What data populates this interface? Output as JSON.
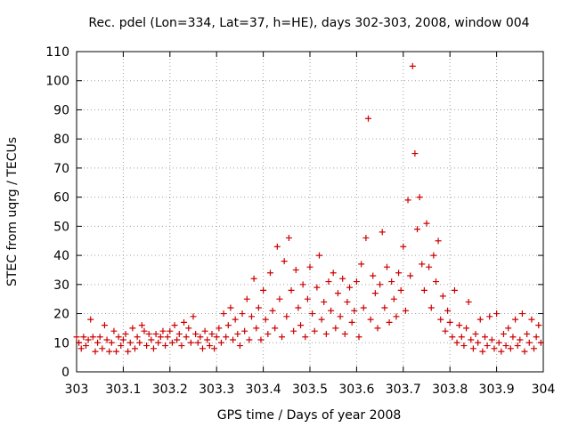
{
  "chart_data": {
    "type": "scatter",
    "title": "Rec. pdel (Lon=334, Lat=37, h=HE), days 302-303, 2008, window 004",
    "xlabel": "GPS time / Days of year 2008",
    "ylabel": "STEC from uqrg / TECUs",
    "xlim": [
      303,
      304
    ],
    "ylim": [
      0,
      110
    ],
    "xticks": [
      "303",
      "303.1",
      "303.2",
      "303.3",
      "303.4",
      "303.5",
      "303.6",
      "303.7",
      "303.8",
      "303.9",
      "304"
    ],
    "yticks": [
      "0",
      "10",
      "20",
      "30",
      "40",
      "50",
      "60",
      "70",
      "80",
      "90",
      "100",
      "110"
    ],
    "grid": true,
    "marker": "plus",
    "color": "#cc0000",
    "series": [
      {
        "name": "STEC",
        "points": [
          [
            303.0,
            12
          ],
          [
            303.005,
            10
          ],
          [
            303.01,
            8
          ],
          [
            303.015,
            12
          ],
          [
            303.02,
            9
          ],
          [
            303.025,
            11
          ],
          [
            303.03,
            18
          ],
          [
            303.035,
            12
          ],
          [
            303.04,
            7
          ],
          [
            303.045,
            10
          ],
          [
            303.05,
            12
          ],
          [
            303.055,
            8
          ],
          [
            303.06,
            16
          ],
          [
            303.065,
            11
          ],
          [
            303.07,
            7
          ],
          [
            303.075,
            10
          ],
          [
            303.08,
            14
          ],
          [
            303.085,
            7
          ],
          [
            303.09,
            12
          ],
          [
            303.095,
            9
          ],
          [
            303.1,
            11
          ],
          [
            303.105,
            13
          ],
          [
            303.11,
            7
          ],
          [
            303.115,
            10
          ],
          [
            303.12,
            15
          ],
          [
            303.125,
            8
          ],
          [
            303.13,
            12
          ],
          [
            303.135,
            10
          ],
          [
            303.14,
            16
          ],
          [
            303.145,
            14
          ],
          [
            303.15,
            9
          ],
          [
            303.155,
            13
          ],
          [
            303.16,
            11
          ],
          [
            303.165,
            8
          ],
          [
            303.17,
            13
          ],
          [
            303.175,
            10
          ],
          [
            303.18,
            12
          ],
          [
            303.185,
            14
          ],
          [
            303.19,
            9
          ],
          [
            303.195,
            12
          ],
          [
            303.2,
            14
          ],
          [
            303.205,
            10
          ],
          [
            303.21,
            16
          ],
          [
            303.215,
            11
          ],
          [
            303.22,
            13
          ],
          [
            303.225,
            9
          ],
          [
            303.23,
            17
          ],
          [
            303.235,
            12
          ],
          [
            303.24,
            15
          ],
          [
            303.245,
            10
          ],
          [
            303.25,
            19
          ],
          [
            303.255,
            13
          ],
          [
            303.26,
            10
          ],
          [
            303.265,
            12
          ],
          [
            303.27,
            8
          ],
          [
            303.275,
            14
          ],
          [
            303.28,
            11
          ],
          [
            303.285,
            9
          ],
          [
            303.29,
            13
          ],
          [
            303.295,
            8
          ],
          [
            303.3,
            12
          ],
          [
            303.305,
            15
          ],
          [
            303.31,
            10
          ],
          [
            303.315,
            20
          ],
          [
            303.32,
            12
          ],
          [
            303.325,
            16
          ],
          [
            303.33,
            22
          ],
          [
            303.335,
            11
          ],
          [
            303.34,
            18
          ],
          [
            303.345,
            13
          ],
          [
            303.35,
            9
          ],
          [
            303.355,
            20
          ],
          [
            303.36,
            14
          ],
          [
            303.365,
            25
          ],
          [
            303.37,
            11
          ],
          [
            303.375,
            19
          ],
          [
            303.38,
            32
          ],
          [
            303.385,
            15
          ],
          [
            303.39,
            22
          ],
          [
            303.395,
            11
          ],
          [
            303.4,
            28
          ],
          [
            303.405,
            18
          ],
          [
            303.41,
            13
          ],
          [
            303.415,
            34
          ],
          [
            303.42,
            21
          ],
          [
            303.425,
            15
          ],
          [
            303.43,
            43
          ],
          [
            303.435,
            25
          ],
          [
            303.44,
            12
          ],
          [
            303.445,
            38
          ],
          [
            303.45,
            19
          ],
          [
            303.455,
            46
          ],
          [
            303.46,
            28
          ],
          [
            303.465,
            14
          ],
          [
            303.47,
            35
          ],
          [
            303.475,
            22
          ],
          [
            303.48,
            16
          ],
          [
            303.485,
            30
          ],
          [
            303.49,
            12
          ],
          [
            303.495,
            25
          ],
          [
            303.5,
            36
          ],
          [
            303.505,
            20
          ],
          [
            303.51,
            14
          ],
          [
            303.515,
            29
          ],
          [
            303.52,
            40
          ],
          [
            303.525,
            18
          ],
          [
            303.53,
            24
          ],
          [
            303.535,
            13
          ],
          [
            303.54,
            31
          ],
          [
            303.545,
            21
          ],
          [
            303.55,
            34
          ],
          [
            303.555,
            15
          ],
          [
            303.56,
            27
          ],
          [
            303.565,
            19
          ],
          [
            303.57,
            32
          ],
          [
            303.575,
            13
          ],
          [
            303.58,
            24
          ],
          [
            303.585,
            29
          ],
          [
            303.59,
            17
          ],
          [
            303.595,
            21
          ],
          [
            303.6,
            31
          ],
          [
            303.605,
            12
          ],
          [
            303.61,
            37
          ],
          [
            303.615,
            22
          ],
          [
            303.62,
            46
          ],
          [
            303.625,
            87
          ],
          [
            303.63,
            18
          ],
          [
            303.635,
            33
          ],
          [
            303.64,
            27
          ],
          [
            303.645,
            15
          ],
          [
            303.65,
            30
          ],
          [
            303.655,
            48
          ],
          [
            303.66,
            22
          ],
          [
            303.665,
            36
          ],
          [
            303.67,
            17
          ],
          [
            303.675,
            31
          ],
          [
            303.68,
            25
          ],
          [
            303.685,
            19
          ],
          [
            303.69,
            34
          ],
          [
            303.695,
            28
          ],
          [
            303.7,
            43
          ],
          [
            303.705,
            21
          ],
          [
            303.71,
            59
          ],
          [
            303.715,
            33
          ],
          [
            303.72,
            105
          ],
          [
            303.725,
            75
          ],
          [
            303.73,
            49
          ],
          [
            303.735,
            60
          ],
          [
            303.74,
            37
          ],
          [
            303.745,
            28
          ],
          [
            303.75,
            51
          ],
          [
            303.755,
            36
          ],
          [
            303.76,
            22
          ],
          [
            303.765,
            40
          ],
          [
            303.77,
            31
          ],
          [
            303.775,
            45
          ],
          [
            303.78,
            18
          ],
          [
            303.785,
            26
          ],
          [
            303.79,
            14
          ],
          [
            303.795,
            21
          ],
          [
            303.8,
            17
          ],
          [
            303.805,
            12
          ],
          [
            303.81,
            28
          ],
          [
            303.815,
            10
          ],
          [
            303.82,
            16
          ],
          [
            303.825,
            12
          ],
          [
            303.83,
            9
          ],
          [
            303.835,
            15
          ],
          [
            303.84,
            24
          ],
          [
            303.845,
            11
          ],
          [
            303.85,
            8
          ],
          [
            303.855,
            13
          ],
          [
            303.86,
            10
          ],
          [
            303.865,
            18
          ],
          [
            303.87,
            7
          ],
          [
            303.875,
            12
          ],
          [
            303.88,
            9
          ],
          [
            303.885,
            19
          ],
          [
            303.89,
            11
          ],
          [
            303.895,
            8
          ],
          [
            303.9,
            20
          ],
          [
            303.905,
            10
          ],
          [
            303.91,
            7
          ],
          [
            303.915,
            13
          ],
          [
            303.92,
            9
          ],
          [
            303.925,
            15
          ],
          [
            303.93,
            8
          ],
          [
            303.935,
            12
          ],
          [
            303.94,
            18
          ],
          [
            303.945,
            9
          ],
          [
            303.95,
            11
          ],
          [
            303.955,
            20
          ],
          [
            303.96,
            7
          ],
          [
            303.965,
            13
          ],
          [
            303.97,
            10
          ],
          [
            303.975,
            18
          ],
          [
            303.98,
            8
          ],
          [
            303.985,
            12
          ],
          [
            303.99,
            16
          ],
          [
            303.995,
            10
          ]
        ]
      }
    ]
  }
}
